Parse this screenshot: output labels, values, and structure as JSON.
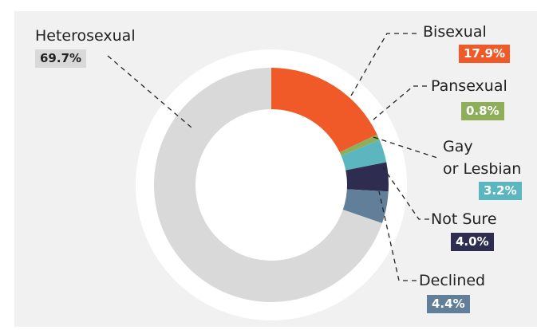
{
  "chart_data": {
    "type": "donut",
    "categories": [
      "Bisexual",
      "Pansexual",
      "Gay\nor Lesbian",
      "Not Sure",
      "Declined",
      "Heterosexual"
    ],
    "values": [
      17.9,
      0.8,
      3.2,
      4.0,
      4.4,
      69.7
    ],
    "value_labels": [
      "17.9%",
      "0.8%",
      "3.2%",
      "4.0%",
      "4.4%",
      "69.7%"
    ],
    "colors": [
      "#f05a28",
      "#8fae5a",
      "#5bb6c0",
      "#2e2d4f",
      "#627f99",
      "#d9d9d9"
    ]
  }
}
